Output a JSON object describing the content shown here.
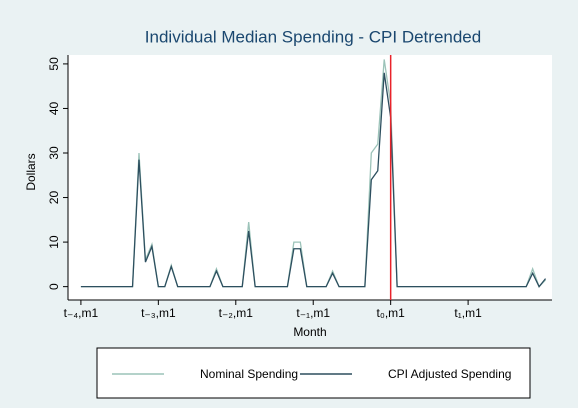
{
  "chart_data": {
    "type": "line",
    "title": "Individual Median Spending - CPI Detrended",
    "x_label": "Month",
    "y_label": "Dollars",
    "x": [
      0,
      1,
      2,
      3,
      4,
      5,
      6,
      7,
      8,
      9,
      10,
      11,
      12,
      13,
      14,
      15,
      16,
      17,
      18,
      19,
      20,
      21,
      22,
      23,
      24,
      25,
      26,
      27,
      28,
      29,
      30,
      31,
      32,
      33,
      34,
      35,
      36,
      37,
      38,
      39,
      40,
      41,
      42,
      43,
      44,
      45,
      46,
      47,
      48,
      49,
      50,
      51,
      52,
      53,
      54,
      55,
      56,
      57,
      58,
      59,
      60,
      61,
      62,
      63,
      64,
      65,
      66,
      67,
      68,
      69,
      70,
      71,
      72
    ],
    "series": [
      {
        "name": "Nominal Spending",
        "color": "#9cc3b9",
        "values": [
          0,
          0,
          0,
          0,
          0,
          0,
          0,
          0,
          0,
          30,
          6,
          9.5,
          0,
          0,
          4.8,
          0,
          0,
          0,
          0,
          0,
          0,
          4,
          0,
          0,
          0,
          0,
          14.5,
          0,
          0,
          0,
          0,
          0,
          0,
          10,
          10,
          0,
          0,
          0,
          0,
          3.5,
          0,
          0,
          0,
          0,
          0,
          30,
          32,
          51,
          41,
          0,
          0,
          0,
          0,
          0,
          0,
          0,
          0,
          0,
          0,
          0,
          0,
          0,
          0,
          0,
          0,
          0,
          0,
          0,
          0,
          0,
          4,
          0,
          1.5
        ]
      },
      {
        "name": "CPI Adjusted Spending",
        "color": "#2d4f5f",
        "values": [
          0,
          0,
          0,
          0,
          0,
          0,
          0,
          0,
          0,
          28.5,
          5.5,
          9,
          0,
          0,
          4.5,
          0,
          0,
          0,
          0,
          0,
          0,
          3.5,
          0,
          0,
          0,
          0,
          12.5,
          0,
          0,
          0,
          0,
          0,
          0,
          8.5,
          8.5,
          0,
          0,
          0,
          0,
          3,
          0,
          0,
          0,
          0,
          0,
          24,
          26,
          48,
          38,
          0,
          0,
          0,
          0,
          0,
          0,
          0,
          0,
          0,
          0,
          0,
          0,
          0,
          0,
          0,
          0,
          0,
          0,
          0,
          0,
          0,
          3,
          0,
          1.8
        ]
      }
    ],
    "vline": 48,
    "vline_color": "#e8232b",
    "xlim": [
      -2,
      73
    ],
    "xticks": [
      {
        "value": 0,
        "label": "t₋₄,m1"
      },
      {
        "value": 12,
        "label": "t₋₃,m1"
      },
      {
        "value": 24,
        "label": "t₋₂,m1"
      },
      {
        "value": 36,
        "label": "t₋₁,m1"
      },
      {
        "value": 48,
        "label": "t₀,m1"
      },
      {
        "value": 60,
        "label": "t₁,m1"
      }
    ],
    "ylim": [
      -3,
      52
    ],
    "yticks": [
      0,
      10,
      20,
      30,
      40,
      50
    ]
  }
}
